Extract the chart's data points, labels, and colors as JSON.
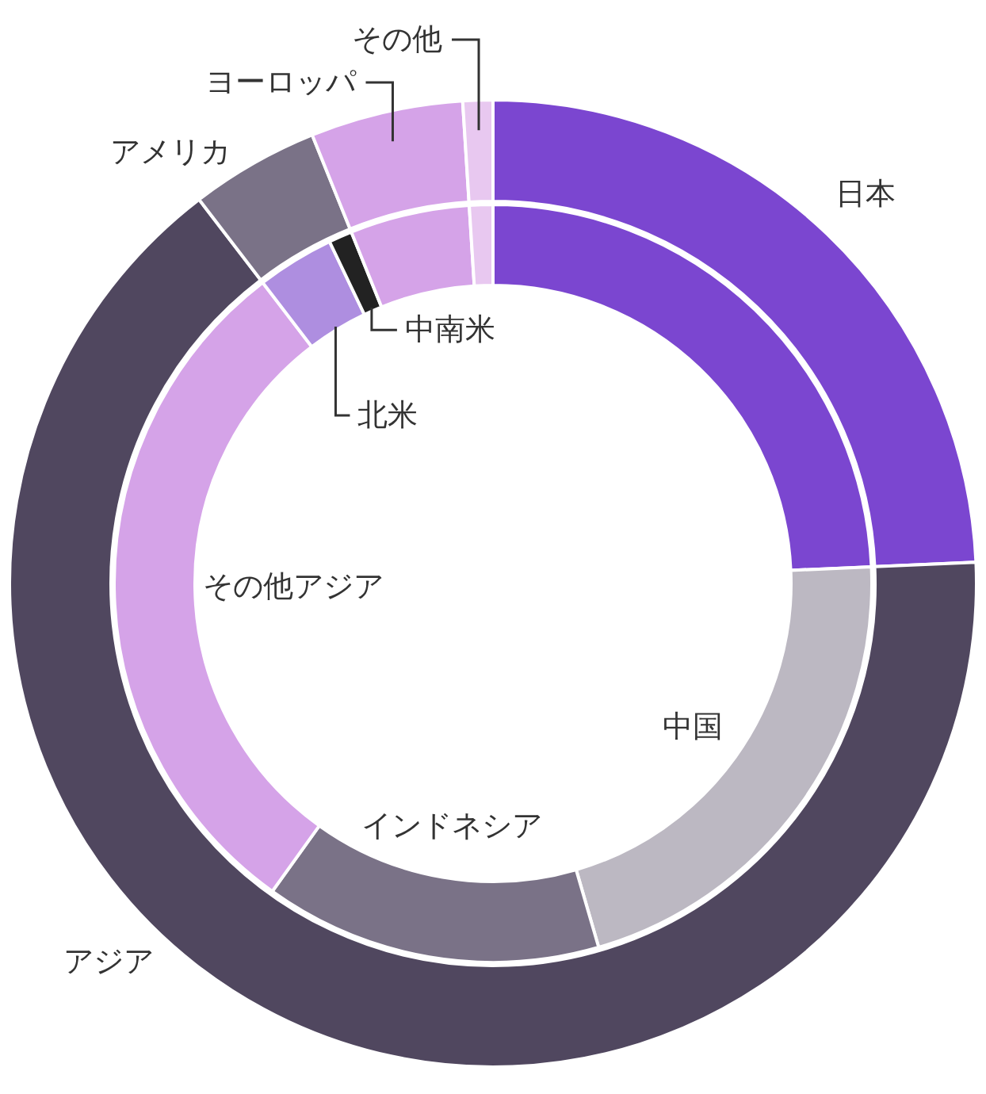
{
  "chart_data": [
    {
      "type": "donut",
      "categories": [
        "日本",
        "アジア",
        "アメリカ",
        "ヨーロッパ",
        "その他"
      ],
      "values": [
        24.3,
        65.3,
        4.3,
        5.1,
        1.0
      ],
      "colors": [
        "#7b46d0",
        "#50475f",
        "#7a7287",
        "#d5a3e8",
        "#e8c8f0"
      ]
    },
    {
      "type": "donut",
      "categories": [
        null,
        "中国",
        "インドネシア",
        "その他アジア",
        "北米",
        "中南米",
        null,
        null
      ],
      "values": [
        24.3,
        21.2,
        14.4,
        29.7,
        3.3,
        1.0,
        5.1,
        1.0
      ],
      "colors": [
        "#7b46d0",
        "#bcb8c2",
        "#7a7287",
        "#d5a3e8",
        "#ae8ee0",
        "#222222",
        "#d5a3e8",
        "#e8c8f0"
      ]
    }
  ]
}
